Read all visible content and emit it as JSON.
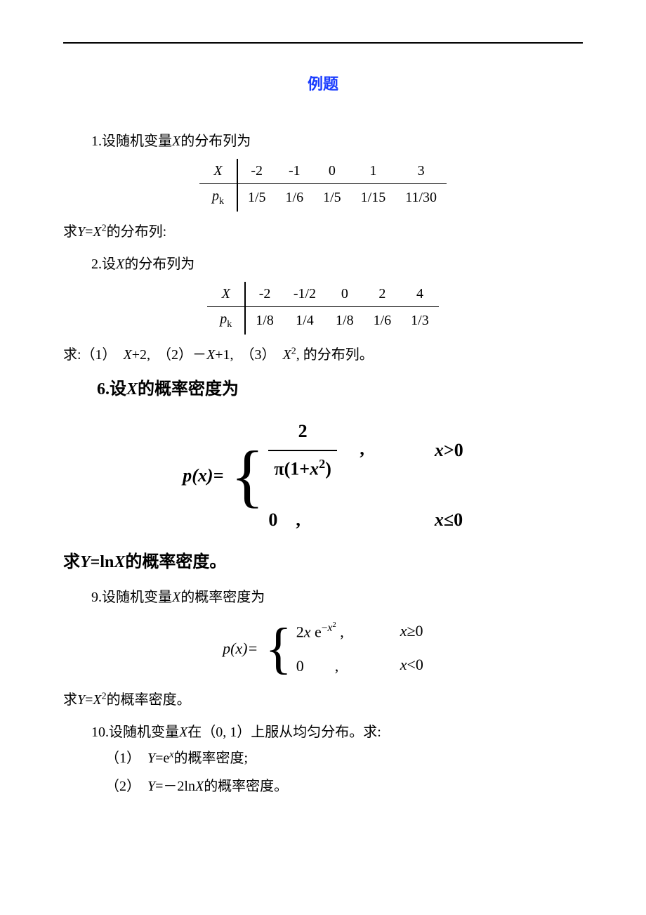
{
  "title_color": "#1a3cff",
  "title": "例题",
  "p1": {
    "intro": "1.设随机变量X的分布列为",
    "table": {
      "row1_label": "X",
      "row2_label": "pₖ",
      "xvals": [
        "-2",
        "-1",
        "0",
        "1",
        "3"
      ],
      "pvals": [
        "1/5",
        "1/6",
        "1/5",
        "1/15",
        "11/30"
      ]
    },
    "outro": "求Y=X²的分布列:"
  },
  "p2": {
    "intro": "2.设X的分布列为",
    "table": {
      "row1_label": "X",
      "row2_label": "pₖ",
      "xvals": [
        "-2",
        "-1/2",
        "0",
        "2",
        "4"
      ],
      "pvals": [
        "1/8",
        "1/4",
        "1/8",
        "1/6",
        "1/3"
      ]
    },
    "outro": "求:（1）　X+2,　（2）－X+1,　（3）　X², 的分布列。"
  },
  "p6": {
    "intro": "6.设X的概率密度为",
    "lhs": "p(x)=",
    "case1_expr_num": "2",
    "case1_expr_den": "π(1+x²)",
    "case1_cond": "x>0",
    "case2_expr": "0　,",
    "case2_cond": "x≤0",
    "outro": "求Y=lnX的概率密度。"
  },
  "p9": {
    "intro": "9.设随机变量X的概率密度为",
    "lhs": "p(x)=",
    "case1_expr": "2x e⁻ˣ² ,",
    "case1_cond": "x≥0",
    "case2_expr": "0　　,",
    "case2_cond": "x<0",
    "outro": "求Y=X²的概率密度。"
  },
  "p10": {
    "intro": "10.设随机变量X在（0, 1）上服从均匀分布。求:",
    "item1": "（1）　Y=eˣ的概率密度;",
    "item2": "（2）　Y=－2lnX的概率密度。"
  }
}
